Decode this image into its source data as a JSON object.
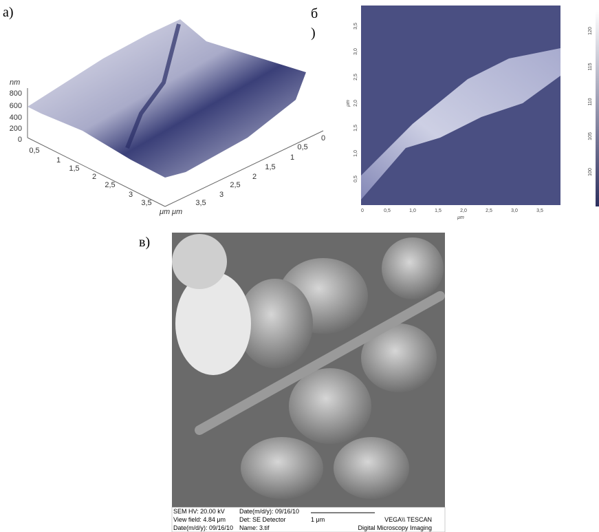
{
  "panel_a": {
    "label": "а)",
    "z_unit": "nm",
    "z_ticks": [
      "800",
      "600",
      "400",
      "200",
      "0"
    ],
    "x_ticks": [
      "0,5",
      "1",
      "1,5",
      "2",
      "2,5",
      "3",
      "3,5"
    ],
    "x_unit": "μm",
    "y_ticks": [
      "0",
      "0,5",
      "1",
      "1,5",
      "2",
      "2,5",
      "3",
      "3,5"
    ],
    "y_unit": "μm"
  },
  "panel_b": {
    "label_top": "б",
    "label_bottom": ")",
    "x_ticks": [
      "0",
      "0,5",
      "1,0",
      "1,5",
      "2,0",
      "2,5",
      "3,0",
      "3,5"
    ],
    "x_unit": "μm",
    "y_ticks": [
      "0,5",
      "1,0",
      "1,5",
      "2,0",
      "2,5",
      "3,0",
      "3,5"
    ],
    "y_unit": "μm",
    "colorbar_ticks": [
      "100",
      "105",
      "110",
      "115",
      "120"
    ]
  },
  "panel_c": {
    "label": "в)",
    "footer": {
      "hv": "SEM HV: 20.00 kV",
      "date1": "Date(m/d/y): 09/16/10",
      "view_field": "View field:   4.84 μm",
      "detector": "Det: SE Detector",
      "scale": "1 μm",
      "brand": "VEGA\\\\ TESCAN",
      "date2": "Date(m/d/y): 09/16/10",
      "name": "Name: 3.tif",
      "imaging": "Digital Microscopy Imaging"
    }
  }
}
